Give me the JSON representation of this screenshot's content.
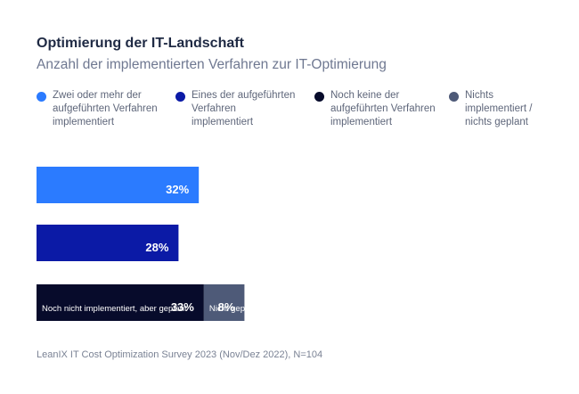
{
  "chart_data": {
    "type": "bar",
    "orientation": "horizontal-stacked",
    "title": "Optimierung der IT-Landschaft",
    "subtitle": "Anzahl der implementierten Verfahren zur IT-Optimierung",
    "legend": [
      {
        "label": "Zwei oder mehr der\naufgeführten Verfahren\nimplementiert",
        "color": "#2b7bff"
      },
      {
        "label": "Eines der aufgeführten\nVerfahren\nimplementiert",
        "color": "#0b1aa6"
      },
      {
        "label": "Noch keine der\naufgeführten Verfahren\nimplementiert",
        "color": "#070b2b"
      },
      {
        "label": "Nichts\nimplementiert /\nnichts geplant",
        "color": "#4e5a78"
      }
    ],
    "xlim": [
      0,
      101
    ],
    "bars": [
      {
        "segments": [
          {
            "value": 32,
            "label": "32%",
            "inner_label": "",
            "color": "#2b7bff"
          }
        ]
      },
      {
        "segments": [
          {
            "value": 28,
            "label": "28%",
            "inner_label": "",
            "color": "#0b1aa6"
          }
        ]
      },
      {
        "segments": [
          {
            "value": 33,
            "label": "33%",
            "inner_label": "Noch nicht implementiert, aber geplant",
            "color": "#070b2b"
          },
          {
            "value": 8,
            "label": "8%",
            "inner_label": "Nicht geplant",
            "color": "#4e5a78"
          }
        ]
      }
    ]
  },
  "footnote": "LeanIX IT Cost Optimization Survey 2023 (Nov/Dez 2022), N=104"
}
